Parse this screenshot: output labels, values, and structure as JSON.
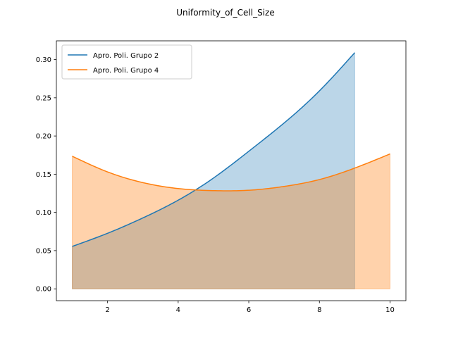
{
  "chart_data": {
    "type": "area",
    "title": "Uniformity_of_Cell_Size",
    "xlabel": "",
    "ylabel": "",
    "xlim": [
      0.55,
      10.45
    ],
    "ylim": [
      -0.0155,
      0.3245
    ],
    "x_ticks": [
      2,
      4,
      6,
      8,
      10
    ],
    "y_ticks": [
      0.0,
      0.05,
      0.1,
      0.15,
      0.2,
      0.25,
      0.3
    ],
    "x_tick_labels": [
      "2",
      "4",
      "6",
      "8",
      "10"
    ],
    "y_tick_labels": [
      "0.00",
      "0.05",
      "0.10",
      "0.15",
      "0.20",
      "0.25",
      "0.30"
    ],
    "grid": false,
    "legend_position": "top-left",
    "series": [
      {
        "name": "Apro. Poli. Grupo 2",
        "color": "#1f77b4",
        "fill_alpha": 0.3,
        "x": [
          1,
          2,
          3,
          4,
          5,
          6,
          7,
          8,
          9
        ],
        "y": [
          0.0555,
          0.0727,
          0.0928,
          0.116,
          0.145,
          0.18,
          0.217,
          0.259,
          0.309
        ]
      },
      {
        "name": "Apro. Poli. Grupo 4",
        "color": "#ff7f0e",
        "fill_alpha": 0.35,
        "x": [
          1,
          2,
          3,
          4,
          5,
          6,
          7,
          8,
          9,
          10
        ],
        "y": [
          0.1735,
          0.153,
          0.139,
          0.1312,
          0.1285,
          0.129,
          0.134,
          0.143,
          0.158,
          0.1765
        ]
      }
    ]
  }
}
